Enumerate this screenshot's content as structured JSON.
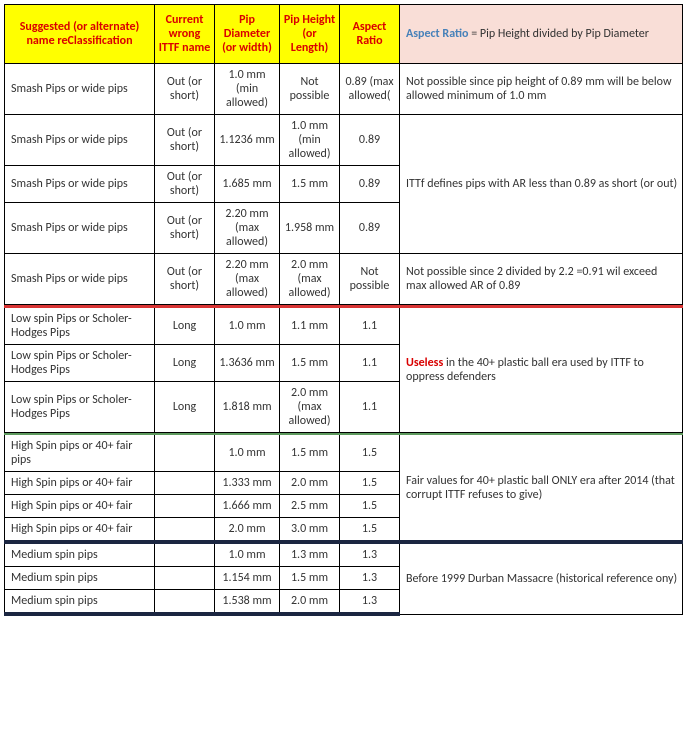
{
  "header": {
    "col1": "Suggested (or alternate) name reClassification",
    "col2": "Current wrong ITTF name",
    "col3": "Pip Diameter (or width)",
    "col4": "Pip Height (or Length)",
    "col5": "Aspect Ratio",
    "col6_label": "Aspect Ratio",
    "col6_rest": " = Pip Height divided by Pip Diameter"
  },
  "g1": {
    "name": "Smash Pips or wide pips",
    "ittf": "Out (or short)",
    "r0": {
      "dia": "1.0 mm (min allowed)",
      "ht": "Not possible",
      "ar": "0.89 (max allowed("
    },
    "r1": {
      "dia": "1.1236 mm",
      "ht": "1.0 mm (min allowed)",
      "ar": "0.89"
    },
    "r2": {
      "dia": "1.685 mm",
      "ht": "1.5 mm",
      "ar": "0.89"
    },
    "r3": {
      "dia": "2.20 mm (max allowed)",
      "ht": "1.958 mm",
      "ar": "0.89"
    },
    "r4": {
      "dia": "2.20 mm (max allowed)",
      "ht": "2.0 mm (max allowed)",
      "ar": "Not possible"
    },
    "note0": "Not possible since pip height of 0.89 mm will be below allowed minimum of 1.0 mm",
    "note1": "ITTf defines pips with AR less than 0.89 as short (or out)",
    "note4": "Not possible since 2 divided by 2.2 =0.91 wil exceed max allowed AR of 0.89"
  },
  "g2": {
    "name": "Low spin Pips or Scholer-Hodges Pips",
    "ittf": "Long",
    "r0": {
      "dia": "1.0 mm",
      "ht": "1.1 mm",
      "ar": "1.1"
    },
    "r1": {
      "dia": "1.3636 mm",
      "ht": "1.5 mm",
      "ar": "1.1"
    },
    "r2": {
      "dia": "1.818 mm",
      "ht": "2.0 mm (max allowed)",
      "ar": "1.1"
    },
    "note_label": "Useless",
    "note_rest": " in the 40+ plastic ball era used by ITTF to oppress defenders"
  },
  "g3": {
    "name": "High Spin pips or 40+ fair pips",
    "name_short": "High Spin pips or 40+ fair",
    "r0": {
      "dia": "1.0 mm",
      "ht": "1.5 mm",
      "ar": "1.5"
    },
    "r1": {
      "dia": "1.333 mm",
      "ht": "2.0 mm",
      "ar": "1.5"
    },
    "r2": {
      "dia": "1.666 mm",
      "ht": "2.5 mm",
      "ar": "1.5"
    },
    "r3": {
      "dia": "2.0 mm",
      "ht": "3.0 mm",
      "ar": "1.5"
    },
    "note": "Fair values for 40+ plastic ball ONLY era after 2014 (that corrupt ITTF refuses to give)"
  },
  "g4": {
    "name": "Medium spin pips",
    "r0": {
      "dia": "1.0 mm",
      "ht": "1.3 mm",
      "ar": "1.3"
    },
    "r1": {
      "dia": "1.154 mm",
      "ht": "1.5 mm",
      "ar": "1.3"
    },
    "r2": {
      "dia": "1.538 mm",
      "ht": "2.0 mm",
      "ar": "1.3"
    },
    "note": "Before 1999 Durban Massacre (historical reference ony)"
  }
}
